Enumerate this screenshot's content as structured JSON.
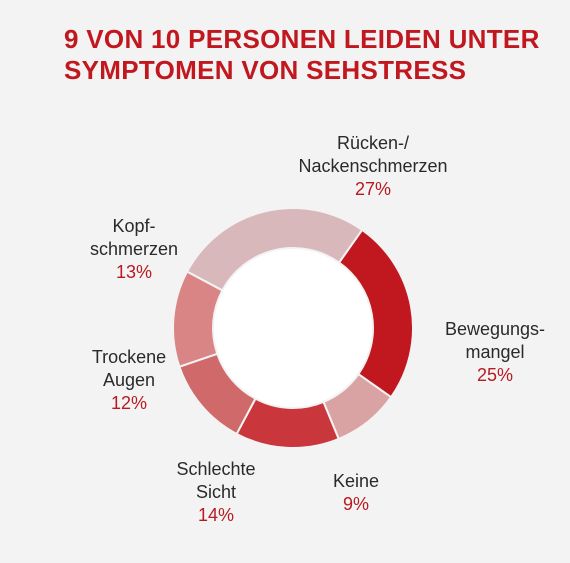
{
  "title_lines": [
    "9 VON 10 PERSONEN LEIDEN UNTER",
    "SYMPTOMEN VON SEHSTRESS"
  ],
  "chart_data": {
    "type": "pie",
    "variant": "donut",
    "title": "9 VON 10 PERSONEN LEIDEN UNTER SYMPTOMEN VON SEHSTRESS",
    "slices": [
      {
        "label_lines": [
          "Rücken-/",
          "Nackenschmerzen"
        ],
        "value": 27,
        "value_label": "27%",
        "color": "#d9b8bb"
      },
      {
        "label_lines": [
          "Bewegungs-",
          "mangel"
        ],
        "value": 25,
        "value_label": "25%",
        "color": "#c1171f"
      },
      {
        "label_lines": [
          "Keine"
        ],
        "value": 9,
        "value_label": "9%",
        "color": "#d9a3a4"
      },
      {
        "label_lines": [
          "Schlechte",
          "Sicht"
        ],
        "value": 14,
        "value_label": "14%",
        "color": "#c9363c"
      },
      {
        "label_lines": [
          "Trockene",
          "Augen"
        ],
        "value": 12,
        "value_label": "12%",
        "color": "#d06a6a"
      },
      {
        "label_lines": [
          "Kopf-",
          "schmerzen"
        ],
        "value": 13,
        "value_label": "13%",
        "color": "#d98585"
      }
    ]
  }
}
